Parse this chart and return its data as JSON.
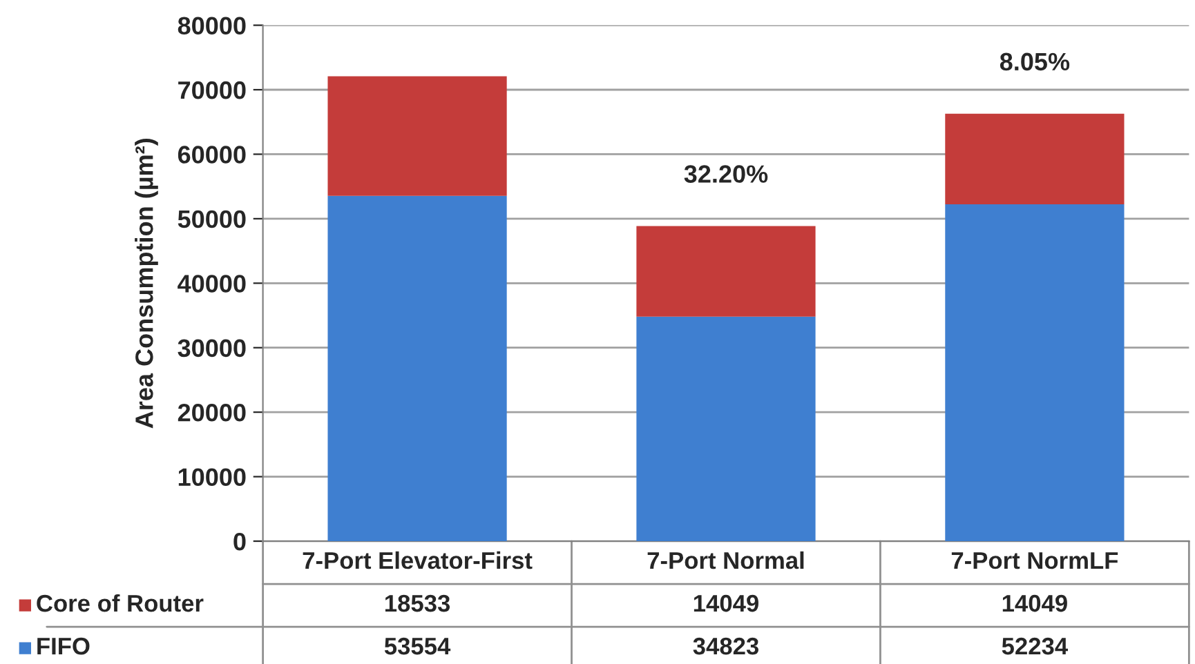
{
  "chart_data": {
    "type": "bar",
    "stacked": true,
    "ylabel": "Area Consumption (µm²)",
    "categories": [
      "7-Port Elevator-First",
      "7-Port Normal",
      "7-Port NormLF"
    ],
    "series": [
      {
        "name": "FIFO",
        "color": "#3f7fd0",
        "values": [
          53554,
          34823,
          52234
        ]
      },
      {
        "name": "Core of Router",
        "color": "#c43c3a",
        "values": [
          18533,
          14049,
          14049
        ]
      }
    ],
    "ylim": [
      0,
      80000
    ],
    "yticks": [
      0,
      10000,
      20000,
      30000,
      40000,
      50000,
      60000,
      70000,
      80000
    ],
    "grid": "y",
    "legend": "bottom",
    "data_labels": true,
    "annotations": [
      {
        "text": "32.20%",
        "x": "7-Port Normal",
        "y": 48872
      },
      {
        "text": "8.05%",
        "x": "7-Port NormLF",
        "y": 66283
      }
    ]
  }
}
